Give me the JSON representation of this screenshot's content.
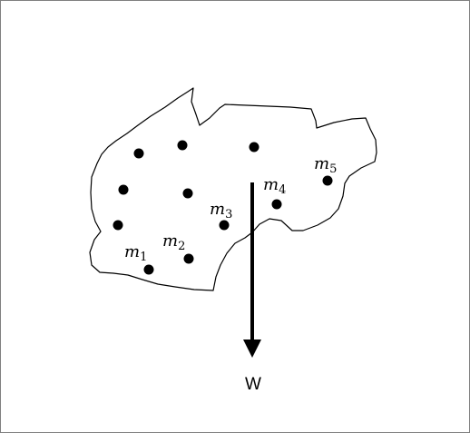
{
  "colors": {
    "ink": "#000000",
    "background": "#ffffff",
    "frame": "#7f7f7f"
  },
  "masses": [
    {
      "symbol": "m",
      "index": "1"
    },
    {
      "symbol": "m",
      "index": "2"
    },
    {
      "symbol": "m",
      "index": "3"
    },
    {
      "symbol": "m",
      "index": "4"
    },
    {
      "symbol": "m",
      "index": "5"
    }
  ],
  "weight": {
    "label": "W"
  }
}
